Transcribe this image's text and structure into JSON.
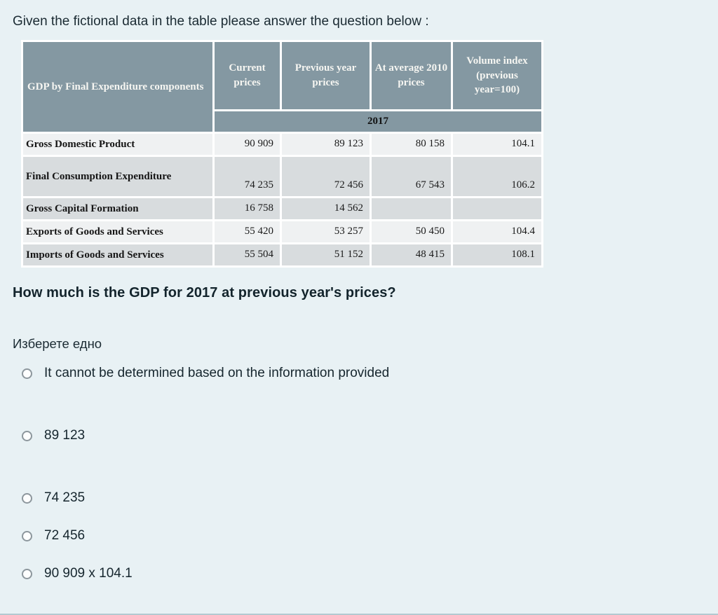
{
  "page": {
    "intro": "Given the fictional data in the table please answer the question below :",
    "question": "How much is the GDP for 2017 at previous year's prices?",
    "choose_prompt": "Изберете едно",
    "colors": {
      "page_bg": "#e8f1f4",
      "table_header_bg": "#8498a2",
      "table_header_text": "#f6f6f2",
      "row_light": "#eff1f2",
      "row_shaded": "#d8dcde",
      "question_text": "#13242c"
    }
  },
  "table": {
    "corner_header": "GDP by Final Expenditure components",
    "column_headers": [
      "Current prices",
      "Previous year prices",
      "At average 2010 prices",
      "Volume index (previous year=100)"
    ],
    "year_header": "2017",
    "rows": [
      {
        "label": "Gross Domestic Product",
        "current": "90 909",
        "previous": "89 123",
        "avg2010": "80 158",
        "volume": "104.1"
      },
      {
        "label": "Final Consumption Expenditure",
        "current": "74 235",
        "previous": "72 456",
        "avg2010": "67 543",
        "volume": "106.2"
      },
      {
        "label": "Gross Capital Formation",
        "current": "16 758",
        "previous": "14 562",
        "avg2010": "",
        "volume": ""
      },
      {
        "label": "Exports of Goods and Services",
        "current": "55 420",
        "previous": "53 257",
        "avg2010": "50 450",
        "volume": "104.4"
      },
      {
        "label": "Imports of Goods and Services",
        "current": "55 504",
        "previous": "51 152",
        "avg2010": "48 415",
        "volume": "108.1"
      }
    ]
  },
  "options": [
    {
      "label": "It cannot be determined based on the information provided"
    },
    {
      "label": "89 123"
    },
    {
      "label": "74 235"
    },
    {
      "label": "72 456"
    },
    {
      "label": "90 909 x 104.1"
    }
  ]
}
